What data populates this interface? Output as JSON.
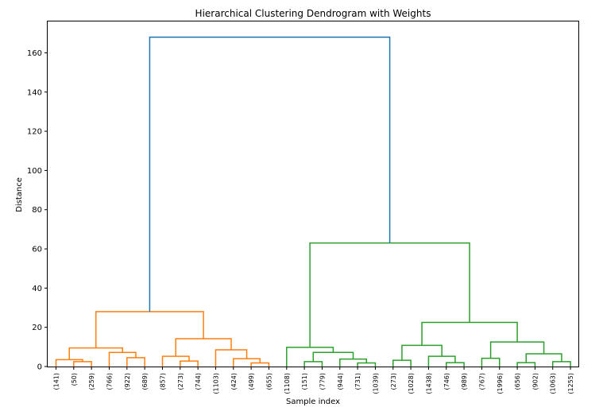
{
  "chart_data": {
    "type": "dendrogram",
    "title": "Hierarchical Clustering Dendrogram with Weights",
    "xlabel": "Sample index",
    "ylabel": "Distance",
    "ylim": [
      0,
      176
    ],
    "yticks": [
      0,
      20,
      40,
      60,
      80,
      100,
      120,
      140,
      160
    ],
    "grid": false,
    "leaf_labels": [
      "(141)",
      "(50)",
      "(259)",
      "(766)",
      "(922)",
      "(689)",
      "(857)",
      "(273)",
      "(744)",
      "(1103)",
      "(424)",
      "(499)",
      "(655)",
      "(1108)",
      "(151)",
      "(779)",
      "(944)",
      "(731)",
      "(1039)",
      "(273)",
      "(1028)",
      "(1438)",
      "(746)",
      "(989)",
      "(767)",
      "(1996)",
      "(656)",
      "(902)",
      "(1063)",
      "(1255)"
    ],
    "colors": {
      "cluster_1": "#ff7f0e",
      "cluster_2": "#2ca02c",
      "root": "#1f77b4"
    },
    "links": [
      {
        "left": 1,
        "right": 2,
        "height": 2.5,
        "color": "cluster_1"
      },
      {
        "left": 0,
        "right": "L0",
        "height": 3.5,
        "color": "cluster_1"
      },
      {
        "left": 4,
        "right": 5,
        "height": 4.5,
        "color": "cluster_1"
      },
      {
        "left": 3,
        "right": "L2",
        "height": 7.2,
        "color": "cluster_1"
      },
      {
        "left": "L1",
        "right": "L3",
        "height": 9.5,
        "color": "cluster_1"
      },
      {
        "left": 7,
        "right": 8,
        "height": 2.8,
        "color": "cluster_1"
      },
      {
        "left": 6,
        "right": "L5",
        "height": 5.2,
        "color": "cluster_1"
      },
      {
        "left": 11,
        "right": 12,
        "height": 1.8,
        "color": "cluster_1"
      },
      {
        "left": 10,
        "right": "L7",
        "height": 4.0,
        "color": "cluster_1"
      },
      {
        "left": 9,
        "right": "L8",
        "height": 8.5,
        "color": "cluster_1"
      },
      {
        "left": "L6",
        "right": "L9",
        "height": 14.2,
        "color": "cluster_1"
      },
      {
        "left": "L4",
        "right": "L10",
        "height": 28.0,
        "color": "cluster_1"
      },
      {
        "left": 14,
        "right": 15,
        "height": 2.5,
        "color": "cluster_2"
      },
      {
        "left": 17,
        "right": 18,
        "height": 1.8,
        "color": "cluster_2"
      },
      {
        "left": 16,
        "right": "L13",
        "height": 3.8,
        "color": "cluster_2"
      },
      {
        "left": "L12",
        "right": "L14",
        "height": 7.2,
        "color": "cluster_2"
      },
      {
        "left": 13,
        "right": "L15",
        "height": 9.8,
        "color": "cluster_2"
      },
      {
        "left": 19,
        "right": 20,
        "height": 3.2,
        "color": "cluster_2"
      },
      {
        "left": 22,
        "right": 23,
        "height": 2.0,
        "color": "cluster_2"
      },
      {
        "left": 21,
        "right": "L18",
        "height": 5.2,
        "color": "cluster_2"
      },
      {
        "left": "L17",
        "right": "L19",
        "height": 10.8,
        "color": "cluster_2"
      },
      {
        "left": 24,
        "right": 25,
        "height": 4.2,
        "color": "cluster_2"
      },
      {
        "left": 26,
        "right": 27,
        "height": 2.0,
        "color": "cluster_2"
      },
      {
        "left": 28,
        "right": 29,
        "height": 2.5,
        "color": "cluster_2"
      },
      {
        "left": "L22",
        "right": "L23",
        "height": 6.5,
        "color": "cluster_2"
      },
      {
        "left": "L21",
        "right": "L24",
        "height": 12.5,
        "color": "cluster_2"
      },
      {
        "left": "L20",
        "right": "L25",
        "height": 22.5,
        "color": "cluster_2"
      },
      {
        "left": "L16",
        "right": "L26",
        "height": 63.0,
        "color": "cluster_2"
      },
      {
        "left": "L11",
        "right": "L27",
        "height": 168.0,
        "color": "root"
      }
    ]
  }
}
